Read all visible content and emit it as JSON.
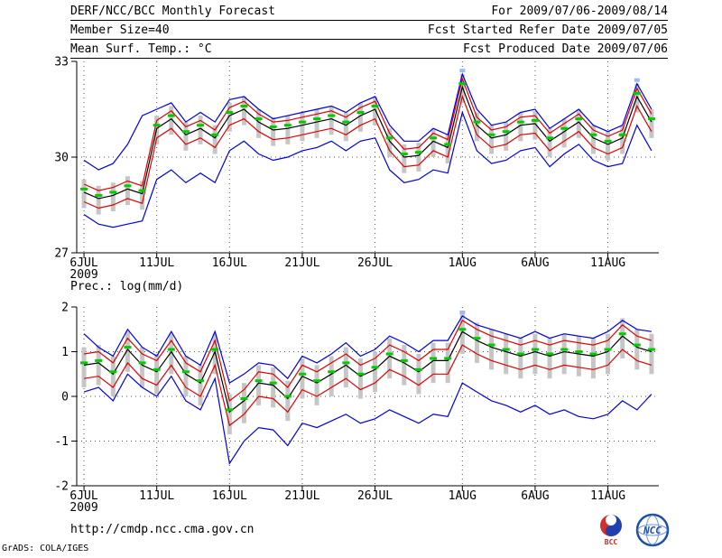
{
  "header": {
    "title": "DERF/NCC/BCC Monthly Forecast",
    "member_size": "Member Size=40",
    "panel1_label": "Mean Surf. Temp.: °C",
    "for_range": "For 2009/07/06-2009/08/14",
    "refer_date": "Fcst Started Refer Date 2009/07/05",
    "produced_date": "Fcst Produced Date 2009/07/06"
  },
  "panel2_label": "Prec.: log(mm/d)",
  "footer": {
    "url": "http://cmdp.ncc.cma.gov.cn",
    "credit": "GrADS: COLA/IGES",
    "logo_bcc": "BCC",
    "logo_ncc": "NCC"
  },
  "colors": {
    "envelope_blue": "#0000e0",
    "quartile_red": "#e00000",
    "mean_black": "#000000",
    "median_green": "#00cc00",
    "bar_gray": "#c6c6c6",
    "peak_marker_lightblue": "#9fb9ee",
    "grid": "#555555",
    "axis": "#000000"
  },
  "chart_data": [
    {
      "type": "line",
      "title": "Mean Surf. Temp.: °C",
      "ylim": [
        27,
        33
      ],
      "yticks": [
        33,
        30,
        27
      ],
      "grid_yticks": [
        30
      ],
      "n_days": 40,
      "xticks": [
        {
          "label": "6JUL",
          "sub": "2009",
          "day": 0
        },
        {
          "label": "11JUL",
          "day": 5
        },
        {
          "label": "16JUL",
          "day": 10
        },
        {
          "label": "21JUL",
          "day": 15
        },
        {
          "label": "26JUL",
          "day": 20
        },
        {
          "label": "1AUG",
          "day": 26
        },
        {
          "label": "6AUG",
          "day": 31
        },
        {
          "label": "11AUG",
          "day": 36
        }
      ],
      "bars": {
        "color": "#c6c6c6",
        "top": [
          29.3,
          29.1,
          29.2,
          29.4,
          29.25,
          31.3,
          31.6,
          31.1,
          31.3,
          31.0,
          31.7,
          31.9,
          31.5,
          31.25,
          31.3,
          31.4,
          31.5,
          31.6,
          31.4,
          31.7,
          31.9,
          30.9,
          30.4,
          30.45,
          30.9,
          30.7,
          32.6,
          31.4,
          31.0,
          31.1,
          31.4,
          31.45,
          30.9,
          31.2,
          31.5,
          31.0,
          30.8,
          31.0,
          32.3,
          31.5
        ],
        "bottom": [
          28.4,
          28.2,
          28.3,
          28.5,
          28.35,
          30.4,
          30.7,
          30.2,
          30.4,
          30.1,
          30.8,
          31.0,
          30.6,
          30.35,
          30.4,
          30.5,
          30.6,
          30.7,
          30.5,
          30.8,
          31.0,
          30.0,
          29.5,
          29.55,
          30.0,
          29.8,
          31.7,
          30.5,
          30.1,
          30.2,
          30.5,
          30.55,
          30.0,
          30.3,
          30.6,
          30.1,
          29.9,
          30.1,
          31.4,
          30.6
        ]
      },
      "series": [
        {
          "name": "max",
          "color": "#0000e0",
          "values": [
            29.9,
            29.6,
            29.8,
            30.4,
            31.3,
            31.5,
            31.7,
            31.1,
            31.4,
            31.1,
            31.8,
            31.9,
            31.5,
            31.2,
            31.3,
            31.4,
            31.5,
            31.6,
            31.4,
            31.7,
            31.9,
            31.0,
            30.5,
            30.5,
            30.9,
            30.7,
            32.6,
            31.5,
            31.0,
            31.1,
            31.4,
            31.5,
            30.9,
            31.2,
            31.5,
            31.0,
            30.8,
            31.0,
            32.3,
            31.5
          ]
        },
        {
          "name": "min",
          "color": "#0000e0",
          "values": [
            28.2,
            27.9,
            27.8,
            27.9,
            28.0,
            29.3,
            29.6,
            29.2,
            29.5,
            29.2,
            30.2,
            30.5,
            30.1,
            29.9,
            30.0,
            30.2,
            30.3,
            30.5,
            30.2,
            30.5,
            30.6,
            29.6,
            29.2,
            29.3,
            29.6,
            29.5,
            31.4,
            30.2,
            29.8,
            29.9,
            30.2,
            30.3,
            29.7,
            30.1,
            30.4,
            29.9,
            29.7,
            29.8,
            31.0,
            30.2
          ]
        },
        {
          "name": "upper-quartile",
          "color": "#e00000",
          "values": [
            29.15,
            28.95,
            29.05,
            29.25,
            29.1,
            31.15,
            31.45,
            30.95,
            31.15,
            30.85,
            31.55,
            31.75,
            31.35,
            31.1,
            31.15,
            31.25,
            31.35,
            31.45,
            31.25,
            31.55,
            31.75,
            30.75,
            30.25,
            30.3,
            30.75,
            30.55,
            32.45,
            31.25,
            30.85,
            30.95,
            31.25,
            31.3,
            30.75,
            31.05,
            31.35,
            30.85,
            30.65,
            30.85,
            32.15,
            31.35
          ]
        },
        {
          "name": "lower-quartile",
          "color": "#e00000",
          "values": [
            28.6,
            28.4,
            28.5,
            28.7,
            28.55,
            30.6,
            30.9,
            30.4,
            30.6,
            30.3,
            31.0,
            31.2,
            30.8,
            30.55,
            30.6,
            30.7,
            30.8,
            30.9,
            30.7,
            31.0,
            31.2,
            30.2,
            29.7,
            29.75,
            30.2,
            30.0,
            31.9,
            30.7,
            30.3,
            30.4,
            30.7,
            30.75,
            30.2,
            30.5,
            30.8,
            30.3,
            30.1,
            30.3,
            31.6,
            30.8
          ]
        },
        {
          "name": "mean",
          "color": "#000000",
          "values": [
            28.9,
            28.7,
            28.8,
            29.0,
            28.85,
            30.9,
            31.2,
            30.7,
            30.9,
            30.6,
            31.3,
            31.5,
            31.1,
            30.85,
            30.9,
            31.0,
            31.1,
            31.2,
            31.0,
            31.3,
            31.5,
            30.5,
            30.0,
            30.05,
            30.5,
            30.3,
            32.2,
            31.0,
            30.6,
            30.7,
            31.0,
            31.05,
            30.5,
            30.8,
            31.1,
            30.6,
            30.4,
            30.6,
            31.9,
            31.1
          ]
        },
        {
          "name": "median",
          "color": "#00cc00",
          "style": "dash-markers",
          "values": [
            29.0,
            28.8,
            28.9,
            29.1,
            28.95,
            31.0,
            31.3,
            30.8,
            31.0,
            30.7,
            31.4,
            31.6,
            31.2,
            30.95,
            31.0,
            31.1,
            31.2,
            31.3,
            31.1,
            31.4,
            31.6,
            30.6,
            30.1,
            30.15,
            30.6,
            30.4,
            32.3,
            31.1,
            30.7,
            30.8,
            31.1,
            31.15,
            30.6,
            30.9,
            31.2,
            30.7,
            30.5,
            30.7,
            32.0,
            31.2
          ]
        }
      ],
      "peak_markers": {
        "color": "#9fb9ee",
        "days": [
          26,
          38
        ]
      }
    },
    {
      "type": "line",
      "title": "Prec.: log(mm/d)",
      "ylim": [
        -2,
        2
      ],
      "yticks": [
        2,
        1,
        0,
        -1,
        -2
      ],
      "grid_yticks": [
        1,
        0,
        -1
      ],
      "n_days": 40,
      "xticks": [
        {
          "label": "6JUL",
          "sub": "2009",
          "day": 0
        },
        {
          "label": "11JUL",
          "day": 5
        },
        {
          "label": "16JUL",
          "day": 10
        },
        {
          "label": "21JUL",
          "day": 15
        },
        {
          "label": "26JUL",
          "day": 20
        },
        {
          "label": "1AUG",
          "day": 26
        },
        {
          "label": "6AUG",
          "day": 31
        },
        {
          "label": "11AUG",
          "day": 36
        }
      ],
      "bars": {
        "color": "#c6c6c6",
        "top": [
          1.1,
          1.15,
          0.9,
          1.45,
          1.1,
          0.95,
          1.4,
          0.9,
          0.7,
          1.4,
          0.05,
          0.3,
          0.7,
          0.65,
          0.35,
          0.85,
          0.7,
          0.9,
          1.1,
          0.85,
          1.0,
          1.3,
          1.15,
          0.95,
          1.2,
          1.2,
          1.85,
          1.65,
          1.5,
          1.4,
          1.3,
          1.4,
          1.3,
          1.4,
          1.35,
          1.3,
          1.4,
          1.75,
          1.5,
          1.4
        ],
        "bottom": [
          0.2,
          0.25,
          0.0,
          0.55,
          0.2,
          0.05,
          0.5,
          0.0,
          -0.2,
          0.5,
          -0.85,
          -0.6,
          -0.2,
          -0.25,
          -0.55,
          -0.05,
          -0.2,
          0.0,
          0.2,
          -0.05,
          0.1,
          0.4,
          0.25,
          0.05,
          0.3,
          0.3,
          0.95,
          0.75,
          0.6,
          0.5,
          0.4,
          0.5,
          0.4,
          0.5,
          0.45,
          0.4,
          0.5,
          0.85,
          0.6,
          0.5
        ]
      },
      "series": [
        {
          "name": "max",
          "color": "#0000e0",
          "values": [
            1.4,
            1.1,
            0.9,
            1.5,
            1.1,
            0.9,
            1.45,
            0.9,
            0.7,
            1.45,
            0.3,
            0.5,
            0.75,
            0.7,
            0.4,
            0.9,
            0.75,
            0.95,
            1.2,
            0.9,
            1.05,
            1.35,
            1.2,
            1.0,
            1.25,
            1.25,
            1.8,
            1.6,
            1.5,
            1.4,
            1.3,
            1.45,
            1.3,
            1.4,
            1.35,
            1.3,
            1.45,
            1.7,
            1.5,
            1.45
          ]
        },
        {
          "name": "min",
          "color": "#0000e0",
          "values": [
            0.1,
            0.2,
            -0.1,
            0.5,
            0.2,
            0.0,
            0.45,
            -0.1,
            -0.3,
            0.4,
            -1.5,
            -1.0,
            -0.7,
            -0.75,
            -1.1,
            -0.6,
            -0.7,
            -0.55,
            -0.4,
            -0.6,
            -0.5,
            -0.3,
            -0.45,
            -0.6,
            -0.4,
            -0.45,
            0.3,
            0.1,
            -0.1,
            -0.2,
            -0.35,
            -0.2,
            -0.4,
            -0.3,
            -0.45,
            -0.5,
            -0.4,
            -0.1,
            -0.3,
            0.05
          ]
        },
        {
          "name": "upper-quartile",
          "color": "#e00000",
          "values": [
            0.95,
            1.0,
            0.75,
            1.3,
            0.95,
            0.8,
            1.25,
            0.75,
            0.55,
            1.25,
            -0.1,
            0.15,
            0.55,
            0.5,
            0.2,
            0.7,
            0.55,
            0.75,
            0.95,
            0.7,
            0.85,
            1.15,
            1.0,
            0.8,
            1.05,
            1.05,
            1.7,
            1.5,
            1.35,
            1.25,
            1.15,
            1.25,
            1.15,
            1.25,
            1.2,
            1.15,
            1.25,
            1.6,
            1.35,
            1.25
          ]
        },
        {
          "name": "lower-quartile",
          "color": "#e00000",
          "values": [
            0.4,
            0.45,
            0.2,
            0.75,
            0.4,
            0.25,
            0.7,
            0.2,
            0.0,
            0.7,
            -0.65,
            -0.4,
            0.0,
            -0.05,
            -0.35,
            0.15,
            0.0,
            0.2,
            0.4,
            0.15,
            0.3,
            0.6,
            0.45,
            0.25,
            0.5,
            0.5,
            1.15,
            0.95,
            0.8,
            0.7,
            0.6,
            0.7,
            0.6,
            0.7,
            0.65,
            0.6,
            0.7,
            1.05,
            0.8,
            0.7
          ]
        },
        {
          "name": "mean",
          "color": "#000000",
          "values": [
            0.7,
            0.75,
            0.5,
            1.05,
            0.7,
            0.55,
            1.0,
            0.5,
            0.3,
            1.0,
            -0.35,
            -0.1,
            0.3,
            0.25,
            -0.05,
            0.45,
            0.3,
            0.5,
            0.7,
            0.45,
            0.6,
            0.9,
            0.75,
            0.55,
            0.8,
            0.8,
            1.45,
            1.25,
            1.1,
            1.0,
            0.9,
            1.0,
            0.9,
            1.0,
            0.95,
            0.9,
            1.0,
            1.35,
            1.1,
            1.0
          ]
        },
        {
          "name": "median",
          "color": "#00cc00",
          "style": "dash-markers",
          "values": [
            0.75,
            0.8,
            0.55,
            1.1,
            0.75,
            0.6,
            1.05,
            0.55,
            0.35,
            1.05,
            -0.3,
            -0.05,
            0.35,
            0.3,
            0.0,
            0.5,
            0.35,
            0.55,
            0.75,
            0.5,
            0.65,
            0.95,
            0.8,
            0.6,
            0.85,
            0.85,
            1.5,
            1.3,
            1.15,
            1.05,
            0.95,
            1.05,
            0.95,
            1.05,
            1.0,
            0.95,
            1.05,
            1.4,
            1.15,
            1.05
          ]
        }
      ],
      "peak_markers": {
        "color": "#9fb9ee",
        "days": [
          26
        ]
      }
    }
  ]
}
